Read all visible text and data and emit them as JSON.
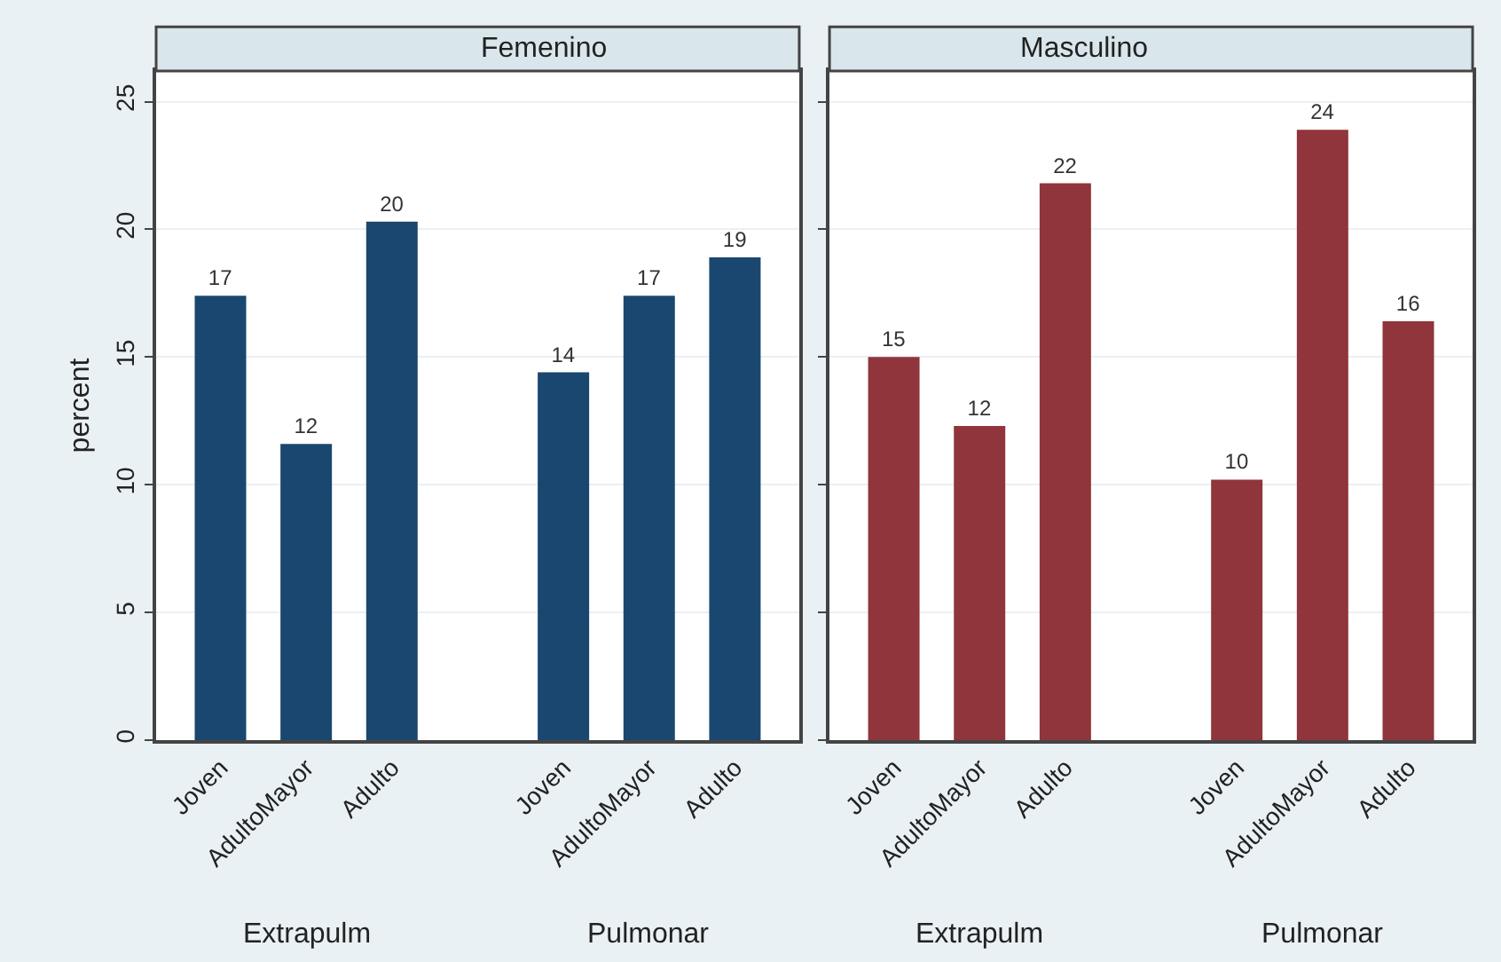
{
  "chart_data": [
    {
      "type": "bar",
      "title": "Femenino",
      "ylabel": "percent",
      "categories": [
        "Joven",
        "AdultoMayor",
        "Adulto",
        null,
        "Joven",
        "AdultoMayor",
        "Adulto"
      ],
      "series": [
        {
          "color": "#1a476f",
          "values": [
            17.4,
            11.6,
            20.3,
            null,
            14.4,
            17.4,
            18.9
          ],
          "value_labels": [
            "17",
            "12",
            "20",
            null,
            "14",
            "17",
            "19"
          ]
        }
      ],
      "annotations": [
        "Extrapulm",
        "Pulmonar"
      ],
      "ylim": [
        0,
        26.2
      ],
      "yticks": [
        0,
        5,
        10,
        15,
        20,
        25
      ],
      "grid": "y"
    },
    {
      "type": "bar",
      "title": "Masculino",
      "categories": [
        "Joven",
        "AdultoMayor",
        "Adulto",
        null,
        "Joven",
        "AdultoMayor",
        "Adulto"
      ],
      "series": [
        {
          "color": "#90353b",
          "values": [
            15.0,
            12.3,
            21.8,
            null,
            10.2,
            23.9,
            16.4
          ],
          "value_labels": [
            "15",
            "12",
            "22",
            null,
            "10",
            "24",
            "16"
          ]
        }
      ],
      "annotations": [
        "Extrapulm",
        "Pulmonar"
      ],
      "ylim": [
        0,
        26.2
      ],
      "yticks": [
        0,
        5,
        10,
        15,
        20,
        25
      ],
      "grid": "y",
      "tick_labels": "x"
    }
  ]
}
